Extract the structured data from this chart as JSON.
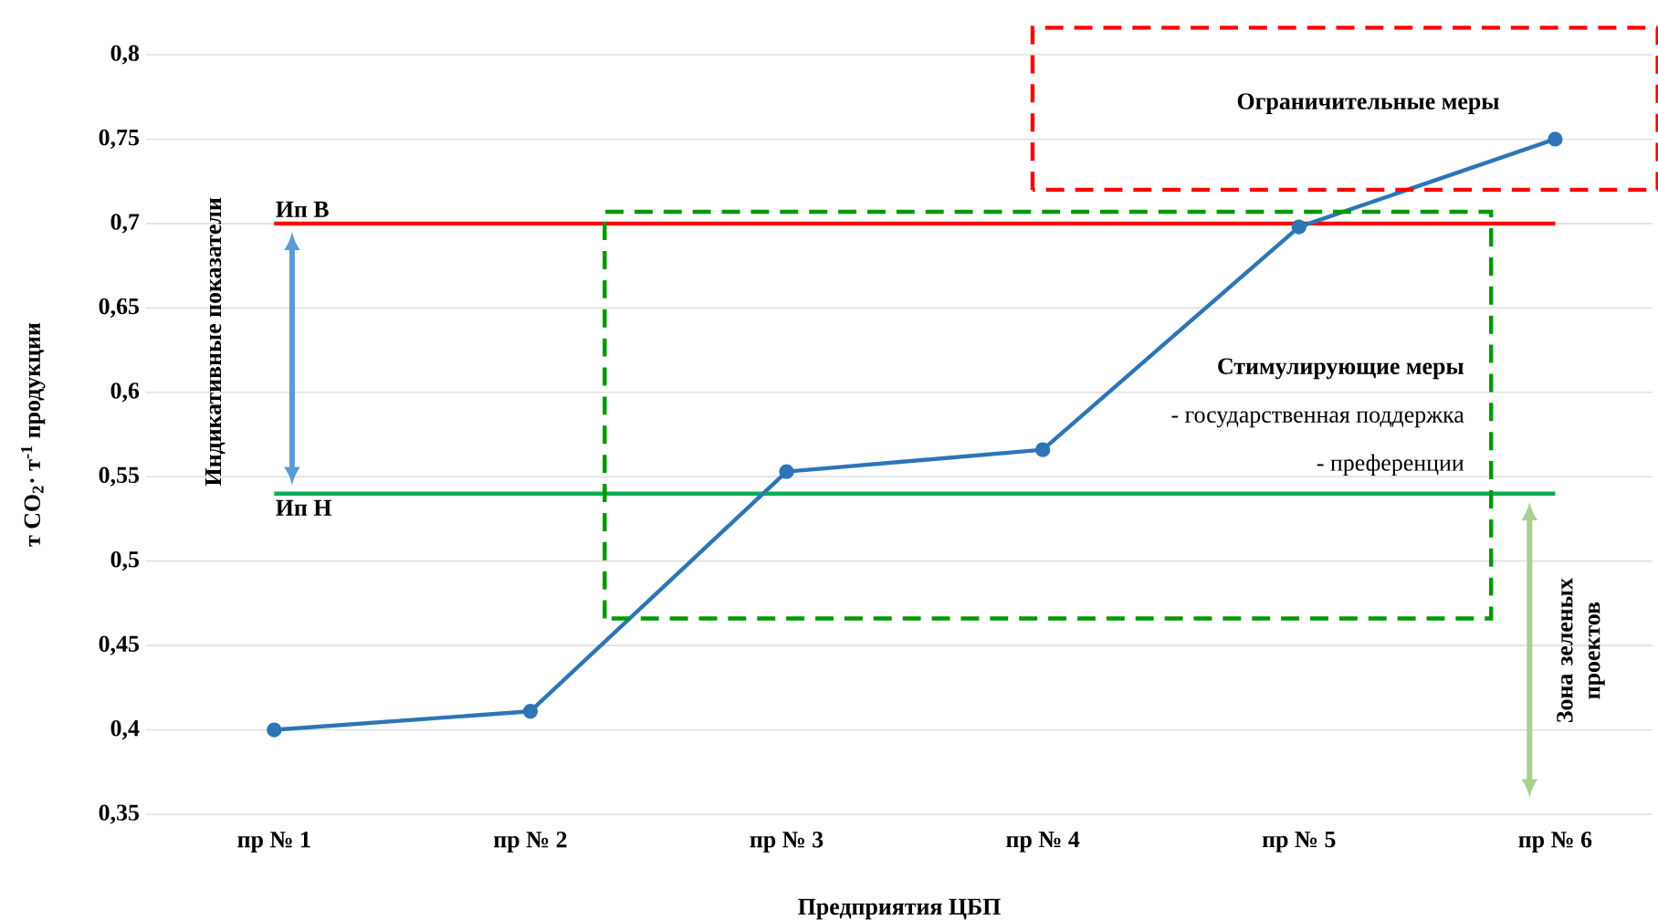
{
  "chart_data": {
    "type": "line",
    "xlabel": "Предприятия ЦБП",
    "ylabel": "т CO$_{2}$· т$^{-1}$ продукции",
    "categories": [
      "пр № 1",
      "пр № 2",
      "пр № 3",
      "пр № 4",
      "пр № 5",
      "пр № 6"
    ],
    "values": [
      0.4,
      0.411,
      0.553,
      0.566,
      0.698,
      0.75
    ],
    "color": "#2e75b6",
    "marker": "circle",
    "ylim": [
      0.35,
      0.8
    ],
    "yticks": [
      {
        "value": 0.35,
        "label": "0,35"
      },
      {
        "value": 0.4,
        "label": "0,4"
      },
      {
        "value": 0.45,
        "label": "0,45"
      },
      {
        "value": 0.5,
        "label": "0,5"
      },
      {
        "value": 0.55,
        "label": "0,55"
      },
      {
        "value": 0.6,
        "label": "0,6"
      },
      {
        "value": 0.65,
        "label": "0,65"
      },
      {
        "value": 0.7,
        "label": "0,7"
      },
      {
        "value": 0.75,
        "label": "0,75"
      },
      {
        "value": 0.8,
        "label": "0,8"
      }
    ],
    "grid": "y",
    "ref_lines": [
      {
        "axis": "y",
        "value": 0.7,
        "label": "Ип В",
        "color": "#ff0000"
      },
      {
        "axis": "y",
        "value": 0.54,
        "label": "Ип Н",
        "color": "#00b050"
      }
    ],
    "annotations": [
      "Ограничительные меры",
      "Стимулирующие меры",
      "- государственная поддержка",
      "- преференции",
      "Индикативные показатели",
      "Зона зеленых проектов"
    ]
  }
}
